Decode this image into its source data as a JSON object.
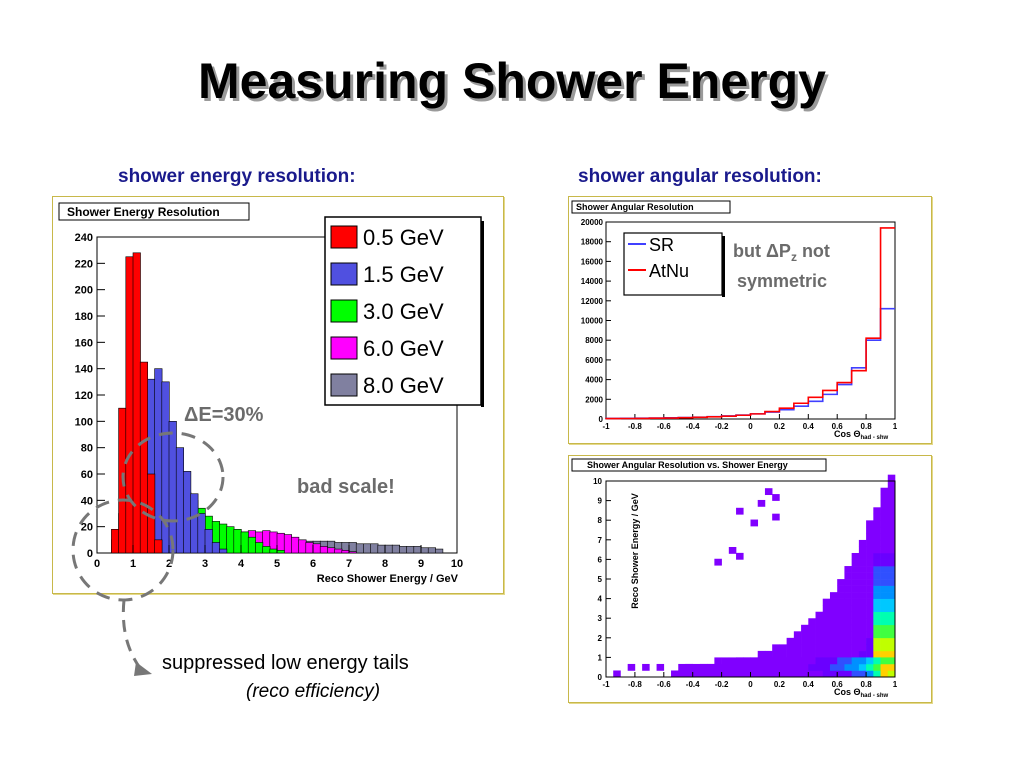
{
  "slide": {
    "title": "Measuring Shower Energy",
    "left_subtitle": "shower energy resolution:",
    "right_subtitle": "shower angular resolution:",
    "bottom_note": "suppressed low energy tails",
    "bottom_note_italic": "(reco efficiency)"
  },
  "chart_data": [
    {
      "type": "histogram",
      "title": "Shower Energy Resolution",
      "xlabel": "Reco Shower Energy / GeV",
      "ylabel": "",
      "xlim": [
        0,
        10
      ],
      "ylim": [
        0,
        240
      ],
      "x_ticks": [
        "0",
        "1",
        "2",
        "3",
        "4",
        "5",
        "6",
        "7",
        "8",
        "9",
        "10"
      ],
      "y_ticks": [
        "0",
        "20",
        "40",
        "60",
        "80",
        "100",
        "120",
        "140",
        "160",
        "180",
        "200",
        "220",
        "240"
      ],
      "legend": "top-right",
      "annotations": [
        "ΔE=30%",
        "bad scale!"
      ],
      "bin_width": 0.2,
      "series": [
        {
          "name": "8.0 GeV",
          "color": "#8080a0",
          "bins_x0": 0.4,
          "values": [
            4,
            5,
            6,
            6,
            7,
            7,
            8,
            8,
            8,
            9,
            9,
            9,
            10,
            10,
            10,
            10,
            10,
            10,
            10,
            10,
            10,
            10,
            10,
            10,
            10,
            10,
            10,
            9,
            9,
            9,
            9,
            8,
            8,
            8,
            7,
            7,
            7,
            6,
            6,
            6,
            5,
            5,
            5,
            4,
            4,
            3
          ]
        },
        {
          "name": "6.0 GeV",
          "color": "#ff00ff",
          "bins_x0": 0.4,
          "values": [
            5,
            7,
            9,
            10,
            12,
            13,
            14,
            15,
            15,
            16,
            16,
            17,
            17,
            18,
            18,
            17,
            17,
            16,
            16,
            17,
            16,
            17,
            16,
            15,
            14,
            12,
            10,
            8,
            7,
            5,
            4,
            3,
            2,
            1
          ]
        },
        {
          "name": "3.0 GeV",
          "color": "#00ff00",
          "bins_x0": 0.4,
          "values": [
            4,
            8,
            15,
            22,
            30,
            35,
            38,
            40,
            44,
            48,
            46,
            40,
            34,
            28,
            24,
            22,
            20,
            18,
            16,
            12,
            8,
            5,
            3,
            2
          ]
        },
        {
          "name": "1.5 GeV",
          "color": "#5050e0",
          "bins_x0": 0.4,
          "values": [
            10,
            30,
            60,
            95,
            120,
            132,
            140,
            130,
            100,
            80,
            62,
            45,
            30,
            18,
            8,
            3
          ]
        },
        {
          "name": "0.5 GeV",
          "color": "#ff0000",
          "bins_x0": 0.4,
          "values": [
            18,
            110,
            225,
            228,
            145,
            60,
            10
          ]
        }
      ]
    },
    {
      "type": "histogram",
      "title": "Shower Angular Resolution",
      "xlabel": "Cos Θhad - shw",
      "ylabel": "",
      "xlim": [
        -1,
        1
      ],
      "ylim": [
        0,
        20000
      ],
      "x_ticks": [
        "-1",
        "-0.8",
        "-0.6",
        "-0.4",
        "-0.2",
        "0",
        "0.2",
        "0.4",
        "0.6",
        "0.8",
        "1"
      ],
      "y_ticks": [
        "0",
        "2000",
        "4000",
        "6000",
        "8000",
        "10000",
        "12000",
        "14000",
        "16000",
        "18000",
        "20000"
      ],
      "legend": "top-left",
      "annotations": [
        "but ΔPz not symmetric"
      ],
      "bin_width": 0.1,
      "x": [
        -1.0,
        -0.9,
        -0.8,
        -0.7,
        -0.6,
        -0.5,
        -0.4,
        -0.3,
        -0.2,
        -0.1,
        0.0,
        0.1,
        0.2,
        0.3,
        0.4,
        0.5,
        0.6,
        0.7,
        0.8,
        0.9
      ],
      "series": [
        {
          "name": "SR",
          "color": "#4040ff",
          "values": [
            60,
            70,
            80,
            100,
            120,
            150,
            190,
            240,
            310,
            400,
            520,
            700,
            950,
            1300,
            1800,
            2500,
            3500,
            5200,
            8000,
            11200
          ]
        },
        {
          "name": "AtNu",
          "color": "#ff0000",
          "values": [
            40,
            50,
            60,
            80,
            100,
            130,
            170,
            220,
            290,
            380,
            520,
            760,
            1100,
            1600,
            2200,
            2900,
            3700,
            4900,
            8200,
            19400
          ]
        }
      ]
    },
    {
      "type": "heatmap",
      "title": "Shower Angular Resolution vs. Shower Energy",
      "xlabel": "Cos Θhad - shw",
      "ylabel": "Reco Shower Energy / GeV",
      "xlim": [
        -1,
        1
      ],
      "ylim": [
        0,
        10
      ],
      "x_ticks": [
        "-1",
        "-0.8",
        "-0.6",
        "-0.4",
        "-0.2",
        "0",
        "0.2",
        "0.4",
        "0.6",
        "0.8",
        "1"
      ],
      "y_ticks": [
        "0",
        "1",
        "2",
        "3",
        "4",
        "5",
        "6",
        "7",
        "8",
        "9",
        "10"
      ],
      "x_bin_width": 0.05,
      "y_bin_width": 0.333,
      "cells": [
        [
          -0.95,
          0,
          1
        ],
        [
          -0.85,
          1,
          1
        ],
        [
          -0.75,
          1,
          1
        ],
        [
          -0.65,
          1,
          1
        ],
        [
          -0.45,
          0,
          1
        ],
        [
          -0.45,
          1,
          1
        ],
        [
          -0.4,
          0,
          1
        ],
        [
          -0.35,
          0,
          1
        ],
        [
          -0.3,
          0,
          1
        ],
        [
          -0.25,
          0,
          1
        ],
        [
          -0.35,
          1,
          1
        ],
        [
          -0.3,
          1,
          1
        ],
        [
          -0.25,
          1,
          1
        ],
        [
          -0.2,
          1,
          1
        ],
        [
          -0.15,
          1,
          1
        ],
        [
          -0.1,
          1,
          1
        ],
        [
          -0.05,
          1,
          1
        ],
        [
          0.0,
          1,
          1
        ],
        [
          0.05,
          1,
          1
        ],
        [
          0.1,
          1,
          1
        ],
        [
          -0.2,
          0,
          1
        ],
        [
          -0.15,
          0,
          1
        ],
        [
          -0.1,
          0,
          1
        ],
        [
          -0.05,
          0,
          1
        ],
        [
          0.0,
          0,
          1
        ],
        [
          0.05,
          0,
          1
        ],
        [
          0.1,
          0,
          1
        ],
        [
          0.15,
          0,
          1
        ],
        [
          0.2,
          0,
          1
        ],
        [
          0.25,
          0,
          1
        ],
        [
          0.3,
          0,
          1
        ],
        [
          0.35,
          0,
          1
        ],
        [
          0.4,
          0,
          1
        ],
        [
          0.45,
          0,
          1
        ],
        [
          0.5,
          0,
          2
        ],
        [
          0.55,
          0,
          2
        ],
        [
          0.6,
          0,
          2
        ],
        [
          0.65,
          0,
          2
        ],
        [
          0.7,
          0,
          3
        ],
        [
          0.75,
          0,
          3
        ],
        [
          0.8,
          0,
          4
        ],
        [
          0.85,
          0,
          6
        ],
        [
          0.9,
          0,
          9
        ],
        [
          0.95,
          0,
          8
        ],
        [
          0.15,
          1,
          1
        ],
        [
          0.2,
          1,
          1
        ],
        [
          0.25,
          1,
          1
        ],
        [
          0.3,
          1,
          1
        ],
        [
          0.35,
          1,
          1
        ],
        [
          0.4,
          1,
          2
        ],
        [
          0.45,
          1,
          2
        ],
        [
          0.5,
          1,
          2
        ],
        [
          0.55,
          1,
          3
        ],
        [
          0.6,
          1,
          3
        ],
        [
          0.65,
          1,
          4
        ],
        [
          0.7,
          1,
          4
        ],
        [
          0.75,
          1,
          5
        ],
        [
          0.8,
          1,
          6
        ],
        [
          0.85,
          1,
          7
        ],
        [
          0.9,
          1,
          9
        ],
        [
          0.95,
          1,
          9
        ],
        [
          -0.25,
          2,
          1
        ],
        [
          -0.2,
          2,
          1
        ],
        [
          -0.15,
          2,
          1
        ],
        [
          -0.1,
          2,
          1
        ],
        [
          -0.05,
          2,
          1
        ],
        [
          0.0,
          2,
          1
        ],
        [
          0.05,
          2,
          1
        ],
        [
          0.1,
          2,
          1
        ],
        [
          0.15,
          2,
          1
        ],
        [
          0.2,
          2,
          1
        ],
        [
          0.25,
          2,
          1
        ],
        [
          0.3,
          2,
          1
        ],
        [
          0.35,
          2,
          1
        ],
        [
          0.4,
          2,
          1
        ],
        [
          0.45,
          2,
          2
        ],
        [
          0.5,
          2,
          2
        ],
        [
          0.55,
          2,
          2
        ],
        [
          0.6,
          2,
          3
        ],
        [
          0.65,
          2,
          3
        ],
        [
          0.7,
          2,
          4
        ],
        [
          0.75,
          2,
          4
        ],
        [
          0.8,
          2,
          5
        ],
        [
          0.85,
          2,
          6
        ],
        [
          0.9,
          2,
          7
        ],
        [
          0.95,
          2,
          7
        ]
      ]
    }
  ],
  "legend1": [
    {
      "label": "0.5 GeV",
      "color": "#ff0000"
    },
    {
      "label": "1.5 GeV",
      "color": "#5050e0"
    },
    {
      "label": "3.0 GeV",
      "color": "#00ff00"
    },
    {
      "label": "6.0 GeV",
      "color": "#ff00ff"
    },
    {
      "label": "8.0 GeV",
      "color": "#8080a0"
    }
  ],
  "legend2": [
    {
      "label": "SR",
      "color": "#4040ff"
    },
    {
      "label": "AtNu",
      "color": "#ff0000"
    }
  ],
  "annotations": {
    "delta_e": "ΔE=30%",
    "bad_scale": "bad scale!",
    "but_text": "but ΔP",
    "but_sub": "z",
    "but_tail": " not",
    "symmetric": "symmetric"
  },
  "axis_labels": {
    "c1_x": "Reco Shower Energy / GeV",
    "c2_x_main": "Cos Θ",
    "c2_x_sub": "had - shw",
    "c3_x_main": "Cos Θ",
    "c3_x_sub": "had - shw",
    "c3_y": "Reco Shower Energy / GeV"
  },
  "panel_titles": {
    "c1": "Shower Energy Resolution",
    "c2": "Shower Angular Resolution",
    "c3": "Shower Angular Resolution vs. Shower Energy"
  }
}
